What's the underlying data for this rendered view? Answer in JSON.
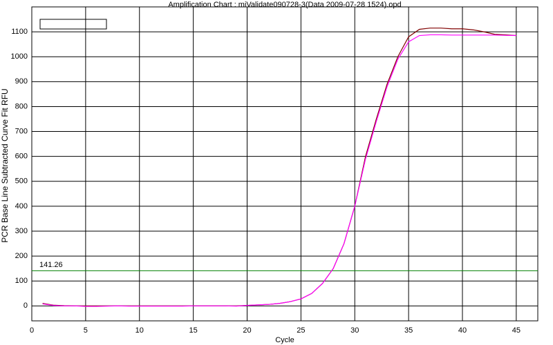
{
  "chart_data": {
    "type": "line",
    "title": "Amplification Chart : miValidate090728-3(Data 2009-07-28 1524).opd",
    "x_label": "Cycle",
    "y_label": "PCR Base Line Subtracted Curve Fit RFU",
    "x": [
      1,
      2,
      3,
      4,
      5,
      6,
      7,
      8,
      9,
      10,
      11,
      12,
      13,
      14,
      15,
      16,
      17,
      18,
      19,
      20,
      21,
      22,
      23,
      24,
      25,
      26,
      27,
      28,
      29,
      30,
      31,
      32,
      33,
      34,
      35,
      36,
      37,
      38,
      39,
      40,
      41,
      42,
      43,
      44,
      45
    ],
    "series": [
      {
        "color": "#800000",
        "values": [
          10,
          3,
          1,
          0,
          0,
          0,
          0,
          0,
          0,
          0,
          0,
          0,
          0,
          0,
          0,
          0,
          0,
          0,
          0,
          2,
          4,
          6,
          10,
          17,
          28,
          50,
          90,
          150,
          250,
          400,
          600,
          750,
          890,
          1000,
          1080,
          1110,
          1115,
          1115,
          1112,
          1112,
          1108,
          1100,
          1090,
          1088,
          1085
        ]
      },
      {
        "color": "#ff00ff",
        "values": [
          8,
          2,
          0,
          0,
          -2,
          -2,
          -1,
          0,
          -1,
          -1,
          -1,
          -1,
          -1,
          -1,
          0,
          0,
          0,
          0,
          -1,
          2,
          4,
          6,
          10,
          17,
          28,
          50,
          90,
          150,
          250,
          400,
          590,
          740,
          880,
          990,
          1060,
          1085,
          1088,
          1088,
          1087,
          1087,
          1087,
          1087,
          1087,
          1086,
          1085
        ]
      }
    ],
    "threshold": 141.26,
    "threshold_color": "#008000",
    "xlim": [
      0,
      47
    ],
    "xticks": [
      0,
      5,
      10,
      15,
      20,
      25,
      30,
      35,
      40,
      45
    ],
    "ylim": [
      -60,
      1200
    ],
    "yticks": [
      0,
      100,
      200,
      300,
      400,
      500,
      600,
      700,
      800,
      900,
      1000,
      1100
    ],
    "grid": true
  }
}
